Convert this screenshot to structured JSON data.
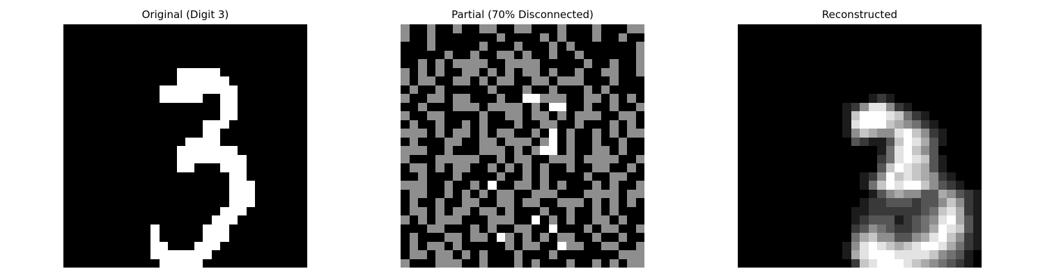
{
  "titles": {
    "original": "Original (Digit 3)",
    "partial": "Partial (70% Disconnected)",
    "reconstructed": "Reconstructed"
  },
  "images": {
    "original": [
      "0000000000000000000000000000",
      "0000000000000000000000000000",
      "0000000000000000000000000000",
      "0000000000000000000000000000",
      "0000000000000000000000000000",
      "0000000000000999990000000000",
      "0000000000000999999000000000",
      "0000000000099999999900000000",
      "0000000000099999009900000000",
      "0000000000000000009900000000",
      "0000000000000000009900000000",
      "0000000000000000999000000000",
      "0000000000000000990000000000",
      "0000000000000099990000000000",
      "0000000000000999999900000000",
      "0000000000000999999990000000",
      "0000000000000990009990000000",
      "0000000000000000000990000000",
      "0000000000000000000999000000",
      "0000000000000000000999000000",
      "0000000000000000000999000000",
      "0000000000000000009990000000",
      "0000000000000000099900000000",
      "0000000000900000999000000000",
      "0000000000900000999000000000",
      "0000000000990009990000000000",
      "0000000000999999900000000000",
      "0000000000099999000000000000"
    ],
    "partial": [
      "5005005005500550005000500055",
      "5005000000050000505000500500",
      "0005000005000500050500000005",
      "0000050050055050050050000005",
      "0050505555005555000005005005",
      "5050500550505055050050055005",
      "5055005505055005505550005000",
      "0500500000500050050005050000",
      "5005505500050099555005505050",
      "0050005550555505099005005005",
      "5005500005005505505055500550",
      "0500500505000500550050005050",
      "5550505505055005090500505055",
      "0500055005505550590500500500",
      "5550050005550505990500550500",
      "5000555550050550055505555005",
      "0550505500505050500500550050",
      "0050005000050050500005005500",
      "5550050050900550505000505005",
      "0550050505055005550005555055",
      "0500500550055055005550505050",
      "0550505505505000500500505000",
      "5050555000555009050500550500",
      "0005500050500550090005055005",
      "0500055055095050505500500500",
      "0505505000005055009550055005",
      "0550550505000500050000000555",
      "5000555005000505000500505055"
    ],
    "reconstructed": [
      "0000000000000000000000000000",
      "0000000000000000000000000000",
      "0000000000000000000000000000",
      "0000000000000000000000000000",
      "0000000000000000000000000000",
      "0000000000000000000000000000",
      "0000000000000000000000000000",
      "0000000000000000000000000000",
      "0000000000000001210000000000",
      "0000000000001258852100000000",
      "0000000000001799987421000000",
      "0000000000001899976542100000",
      "0000000000001576558975210000",
      "0000000000000321137986310000",
      "0000000000000000148975300000",
      "0000000000000000248987310000",
      "0000000000000000379876310000",
      "0000000000000012597876521000",
      "0000000000000014798997532100",
      "0000000000000001356553365321",
      "0000000000000012233323357521",
      "0000000000000112222223478621",
      "0000000000000123331234589631",
      "0000000000000235432234698731",
      "0000000000000467553356897521",
      "0000000000001589876789986421",
      "0000000000001689998888754310",
      "0000000000000278999876543210"
    ]
  }
}
